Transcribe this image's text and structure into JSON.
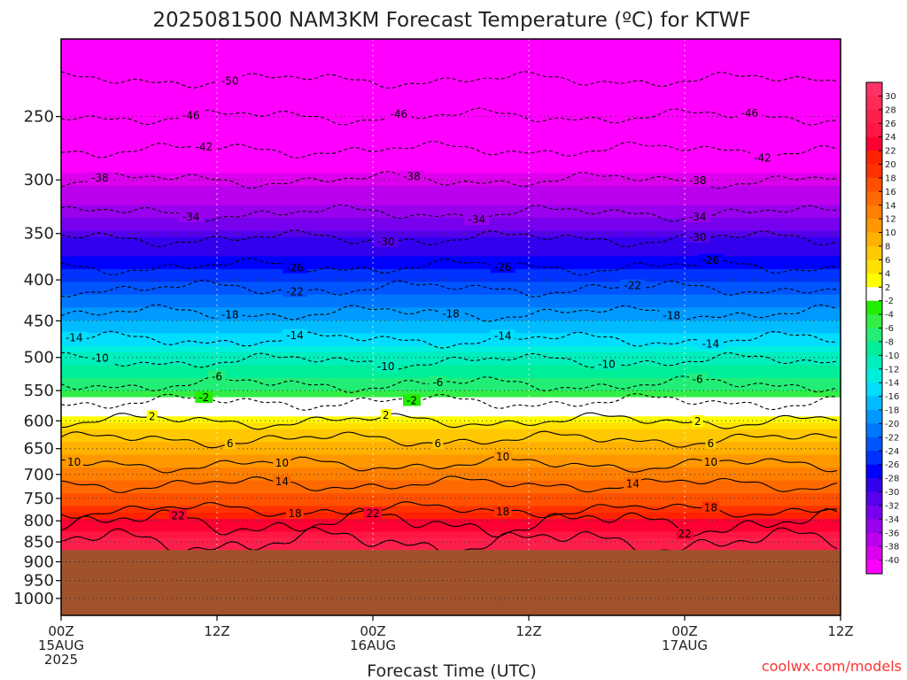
{
  "title": "2025081500 NAM3KM Forecast Temperature (ºC) for KTWF",
  "credit": "coolwx.com/models",
  "credit_color": "#ff3333",
  "terrain_color": "#a0522d",
  "chart_data": {
    "type": "heatmap",
    "xlabel": "Forecast Time (UTC)",
    "y_axis": "pressure (hPa), inverted, log scale",
    "ylim": [
      1050,
      200
    ],
    "xlim_hours": [
      0,
      60
    ],
    "y_ticks": [
      250,
      300,
      350,
      400,
      450,
      500,
      550,
      600,
      650,
      700,
      750,
      800,
      850,
      900,
      950,
      1000
    ],
    "x_ticks": [
      {
        "hour": 0,
        "lines": [
          "00Z",
          "15AUG",
          "2025"
        ]
      },
      {
        "hour": 12,
        "lines": [
          "12Z"
        ]
      },
      {
        "hour": 24,
        "lines": [
          "00Z",
          "16AUG"
        ]
      },
      {
        "hour": 36,
        "lines": [
          "12Z"
        ]
      },
      {
        "hour": 48,
        "lines": [
          "00Z",
          "17AUG"
        ]
      },
      {
        "hour": 60,
        "lines": [
          "12Z"
        ]
      }
    ],
    "surface_pressure_hpa": 870,
    "colorbar": {
      "levels": [
        "30",
        "28",
        "26",
        "24",
        "22",
        "20",
        "18",
        "16",
        "14",
        "12",
        "10",
        "8",
        "6",
        "4",
        "2",
        "-2",
        "-4",
        "-6",
        "-8",
        "-10",
        "-12",
        "-14",
        "-16",
        "-18",
        "-20",
        "-22",
        "-24",
        "-26",
        "-28",
        "-30",
        "-32",
        "-34",
        "-36",
        "-38",
        "-40"
      ],
      "colors": [
        "#ff3366",
        "#ff2a55",
        "#ff1f4c",
        "#ff1744",
        "#ff0033",
        "#ff2200",
        "#ff3300",
        "#ff5000",
        "#ff6a00",
        "#ff8000",
        "#ff9800",
        "#ffb000",
        "#ffc800",
        "#ffe000",
        "#ffff00",
        "#ffffff",
        "#22ee00",
        "#33ee44",
        "#22ee77",
        "#00ee99",
        "#00eebb",
        "#00eedd",
        "#00ddff",
        "#00bbff",
        "#0099ff",
        "#0077ff",
        "#0055ff",
        "#0033ff",
        "#0000ff",
        "#3300ee",
        "#5500ee",
        "#7700ee",
        "#9900ee",
        "#bb00ee",
        "#dd00ee",
        "#ff00ff"
      ]
    },
    "profile": [
      {
        "p": 220,
        "t": -50
      },
      {
        "p": 250,
        "t": -46
      },
      {
        "p": 280,
        "t": -42
      },
      {
        "p": 300,
        "t": -38
      },
      {
        "p": 330,
        "t": -34
      },
      {
        "p": 350,
        "t": -30
      },
      {
        "p": 380,
        "t": -26
      },
      {
        "p": 410,
        "t": -22
      },
      {
        "p": 440,
        "t": -18
      },
      {
        "p": 475,
        "t": -14
      },
      {
        "p": 500,
        "t": -10
      },
      {
        "p": 540,
        "t": -6
      },
      {
        "p": 565,
        "t": -2
      },
      {
        "p": 595,
        "t": 2
      },
      {
        "p": 630,
        "t": 6
      },
      {
        "p": 680,
        "t": 10
      },
      {
        "p": 720,
        "t": 14
      },
      {
        "p": 775,
        "t": 18
      },
      {
        "p": 810,
        "t": 22
      },
      {
        "p": 850,
        "t": 26
      }
    ],
    "contours": [
      {
        "t": -50,
        "p": 225,
        "dashed": true,
        "label_hours": [
          13
        ]
      },
      {
        "t": -46,
        "p": 250,
        "dashed": true,
        "label_hours": [
          10,
          26,
          53
        ]
      },
      {
        "t": -42,
        "p": 275,
        "dashed": true,
        "label_hours": [
          11,
          54
        ]
      },
      {
        "t": -38,
        "p": 300,
        "dashed": true,
        "label_hours": [
          3,
          27,
          49
        ]
      },
      {
        "t": -34,
        "p": 330,
        "dashed": true,
        "label_hours": [
          10,
          32,
          49
        ]
      },
      {
        "t": -30,
        "p": 355,
        "dashed": true,
        "label_hours": [
          25,
          49
        ]
      },
      {
        "t": -26,
        "p": 385,
        "dashed": true,
        "label_hours": [
          18,
          34,
          50
        ]
      },
      {
        "t": -22,
        "p": 410,
        "dashed": true,
        "label_hours": [
          18,
          44
        ]
      },
      {
        "t": -18,
        "p": 440,
        "dashed": true,
        "label_hours": [
          13,
          30,
          47
        ]
      },
      {
        "t": -14,
        "p": 475,
        "dashed": true,
        "label_hours": [
          1,
          18,
          34,
          50
        ]
      },
      {
        "t": -10,
        "p": 505,
        "dashed": true,
        "label_hours": [
          3,
          25,
          42
        ]
      },
      {
        "t": -6,
        "p": 540,
        "dashed": true,
        "label_hours": [
          12,
          29,
          49
        ]
      },
      {
        "t": -2,
        "p": 568,
        "dashed": true,
        "label_hours": [
          11,
          27
        ]
      },
      {
        "t": 2,
        "p": 600,
        "dashed": false,
        "label_hours": [
          7,
          25,
          49
        ]
      },
      {
        "t": 6,
        "p": 633,
        "dashed": false,
        "label_hours": [
          13,
          29,
          50
        ]
      },
      {
        "t": 10,
        "p": 680,
        "dashed": false,
        "label_hours": [
          1,
          17,
          34,
          50
        ]
      },
      {
        "t": 14,
        "p": 720,
        "dashed": false,
        "label_hours": [
          17,
          44
        ]
      },
      {
        "t": 18,
        "p": 775,
        "dashed": false,
        "label_hours": [
          18,
          34,
          50
        ]
      },
      {
        "t": 22,
        "p": 805,
        "dashed": false,
        "label_hours": [
          9,
          24,
          48
        ]
      },
      {
        "t": 26,
        "p": 850,
        "dashed": false,
        "label_hours": [
          45
        ]
      }
    ]
  }
}
